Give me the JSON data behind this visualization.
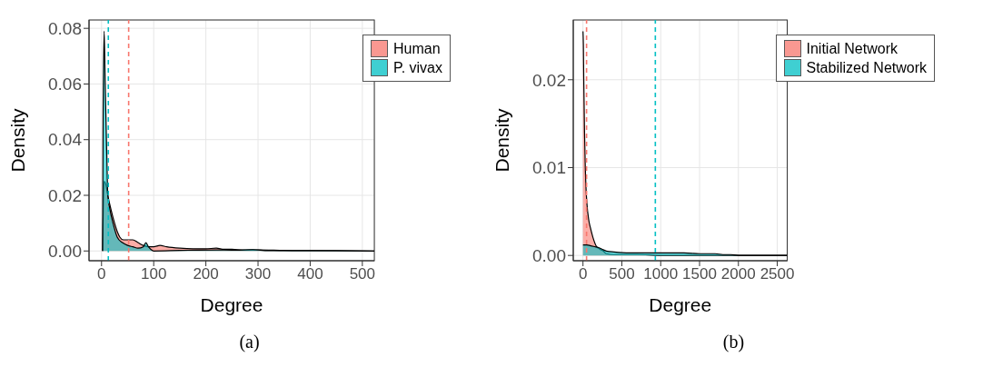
{
  "chart_data": [
    {
      "type": "area",
      "xlabel": "Degree",
      "ylabel": "Density",
      "annotations": [
        "(a)"
      ],
      "xlim": [
        -24,
        523
      ],
      "xticks": [
        0,
        100,
        200,
        300,
        400,
        500
      ],
      "ylim": [
        -0.0035,
        0.083
      ],
      "yticks": [
        {
          "value": 0,
          "label": "0.00"
        },
        {
          "value": 0.02,
          "label": "0.02"
        },
        {
          "value": 0.04,
          "label": "0.04"
        },
        {
          "value": 0.06,
          "label": "0.06"
        },
        {
          "value": 0.08,
          "label": "0.08"
        }
      ],
      "grid": true,
      "legend": "top right",
      "series": [
        {
          "name": "Human",
          "color": "#f8766d",
          "x": [
            2,
            5,
            8,
            12,
            18,
            25,
            30,
            35,
            42,
            50,
            60,
            70,
            80,
            90,
            100,
            112,
            125,
            150,
            175,
            200,
            220,
            235,
            250,
            270,
            300,
            350,
            400,
            450,
            523
          ],
          "values": [
            0,
            0.025,
            0.024,
            0.02,
            0.015,
            0.01,
            0.007,
            0.005,
            0.004,
            0.004,
            0.004,
            0.003,
            0.002,
            0.0015,
            0.0015,
            0.002,
            0.0015,
            0.001,
            0.0008,
            0.0008,
            0.001,
            0.0006,
            0.0006,
            0.0003,
            0.0004,
            0.0002,
            0.0001,
            0.0001,
            0
          ]
        },
        {
          "name": "P. vivax",
          "color": "#00bfc4",
          "x": [
            2,
            3,
            5,
            7,
            10,
            12,
            16,
            22,
            30,
            40,
            50,
            60,
            70,
            80,
            85,
            90,
            95,
            100,
            150,
            220,
            250,
            290,
            320,
            400,
            523
          ],
          "values": [
            0,
            0.05,
            0.079,
            0.06,
            0.035,
            0.02,
            0.015,
            0.01,
            0.005,
            0.003,
            0.002,
            0.0015,
            0.001,
            0.0015,
            0.003,
            0.0015,
            0.0005,
            0,
            0.0002,
            0.0004,
            0.0003,
            0.0005,
            0.0001,
            0.0001,
            0
          ]
        }
      ],
      "ref_lines": [
        {
          "axis": "x",
          "value": 13,
          "color": "#00bfc4",
          "line_style": "dashed"
        },
        {
          "axis": "x",
          "value": 52,
          "color": "#f8766d",
          "line_style": "dashed"
        }
      ]
    },
    {
      "type": "area",
      "xlabel": "Degree",
      "ylabel": "Density",
      "annotations": [
        "(b)"
      ],
      "xlim": [
        -125,
        2628
      ],
      "xticks": [
        0,
        500,
        1000,
        1500,
        2000,
        2500
      ],
      "ylim": [
        -0.0006,
        0.0268
      ],
      "yticks": [
        {
          "value": 0,
          "label": "0.00"
        },
        {
          "value": 0.01,
          "label": "0.01"
        },
        {
          "value": 0.02,
          "label": "0.02"
        }
      ],
      "grid": true,
      "legend": "top right",
      "series": [
        {
          "name": "Initial Network",
          "color": "#f8766d",
          "x": [
            0,
            5,
            10,
            20,
            30,
            40,
            50,
            75,
            100,
            130,
            175,
            220,
            260,
            300,
            400,
            500,
            700,
            1000,
            2628
          ],
          "values": [
            0.0255,
            0.024,
            0.02,
            0.014,
            0.01,
            0.0075,
            0.006,
            0.004,
            0.003,
            0.002,
            0.001,
            0.0007,
            0.0005,
            0.0002,
            0.0001,
            0.0001,
            0.0001,
            0,
            0
          ]
        },
        {
          "name": "Stabilized Network",
          "color": "#00bfc4",
          "x": [
            0,
            50,
            100,
            150,
            200,
            250,
            300,
            400,
            600,
            800,
            1000,
            1300,
            1500,
            1700,
            1800,
            1900,
            2000,
            2300,
            2628
          ],
          "values": [
            0.0012,
            0.0012,
            0.0011,
            0.001,
            0.0009,
            0.0007,
            0.0005,
            0.0004,
            0.0003,
            0.0003,
            0.0003,
            0.0003,
            0.0002,
            0.0002,
            0.0001,
            0.0001,
            0,
            0,
            0
          ]
        }
      ],
      "ref_lines": [
        {
          "axis": "x",
          "value": 46,
          "color": "#f8766d",
          "line_style": "dashed"
        },
        {
          "axis": "x",
          "value": 931,
          "color": "#00bfc4",
          "line_style": "dashed"
        }
      ]
    }
  ]
}
